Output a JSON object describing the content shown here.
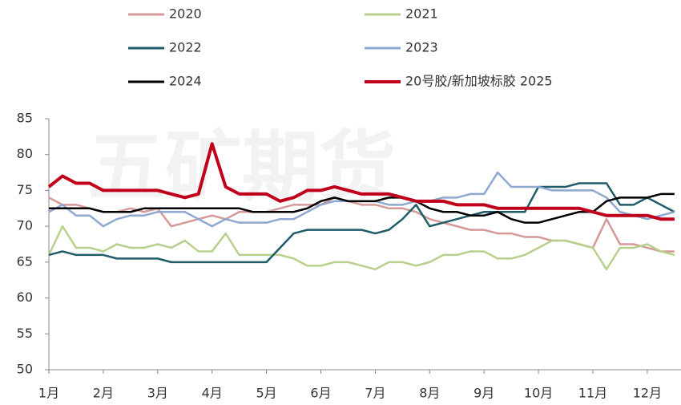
{
  "chart_data": {
    "type": "line",
    "watermark": "五矿期货",
    "x": [
      1,
      1.25,
      1.5,
      1.75,
      2,
      2.25,
      2.5,
      2.75,
      3,
      3.25,
      3.5,
      3.75,
      4,
      4.25,
      4.5,
      4.75,
      5,
      5.25,
      5.5,
      5.75,
      6,
      6.25,
      6.5,
      6.75,
      7,
      7.25,
      7.5,
      7.75,
      8,
      8.25,
      8.5,
      8.75,
      9,
      9.25,
      9.5,
      9.75,
      10,
      10.25,
      10.5,
      10.75,
      11,
      11.25,
      11.5,
      11.75,
      12,
      12.25,
      12.5
    ],
    "xlim": [
      1,
      12.62
    ],
    "xticks": [
      {
        "value": 1,
        "label": "1月"
      },
      {
        "value": 2,
        "label": "2月"
      },
      {
        "value": 3,
        "label": "3月"
      },
      {
        "value": 4,
        "label": "4月"
      },
      {
        "value": 5,
        "label": "5月"
      },
      {
        "value": 6,
        "label": "6月"
      },
      {
        "value": 7,
        "label": "7月"
      },
      {
        "value": 8,
        "label": "8月"
      },
      {
        "value": 9,
        "label": "9月"
      },
      {
        "value": 10,
        "label": "10月"
      },
      {
        "value": 11,
        "label": "11月"
      },
      {
        "value": 12,
        "label": "12月"
      }
    ],
    "ylim": [
      50,
      85
    ],
    "yticks": [
      50,
      55,
      60,
      65,
      70,
      75,
      80,
      85
    ],
    "series": [
      {
        "name": "2020",
        "color": "#d49a98",
        "values": [
          74,
          73,
          73,
          72.5,
          72,
          72,
          72.5,
          72,
          72.5,
          70,
          70.5,
          71,
          71.5,
          71,
          72,
          72,
          72,
          72.5,
          73,
          73,
          73,
          74,
          73.5,
          73,
          73,
          72.5,
          72.5,
          72,
          71,
          70.5,
          70,
          69.5,
          69.5,
          69,
          69,
          68.5,
          68.5,
          68,
          68,
          67.5,
          67,
          71,
          67.5,
          67.5,
          67,
          66.5,
          66.5
        ]
      },
      {
        "name": "2021",
        "color": "#b8d08c",
        "values": [
          66,
          70,
          67,
          67,
          66.5,
          67.5,
          67,
          67,
          67.5,
          67,
          68,
          66.5,
          66.5,
          69,
          66,
          66,
          66,
          66,
          65.5,
          64.5,
          64.5,
          65,
          65,
          64.5,
          64,
          65,
          65,
          64.5,
          65,
          66,
          66,
          66.5,
          66.5,
          65.5,
          65.5,
          66,
          67,
          68,
          68,
          67.5,
          67,
          64,
          67,
          67,
          67.5,
          66.5,
          66
        ]
      },
      {
        "name": "2022",
        "color": "#1f5c6a",
        "values": [
          66,
          66.5,
          66,
          66,
          66,
          65.5,
          65.5,
          65.5,
          65.5,
          65,
          65,
          65,
          65,
          65,
          65,
          65,
          65,
          67,
          69,
          69.5,
          69.5,
          69.5,
          69.5,
          69.5,
          69,
          69.5,
          71,
          73,
          70,
          70.5,
          71,
          71.5,
          72,
          72,
          72,
          72,
          75.5,
          75.5,
          75.5,
          76,
          76,
          76,
          73,
          73,
          74,
          73,
          72
        ]
      },
      {
        "name": "2023",
        "color": "#8ea8d0",
        "values": [
          72,
          73,
          71.5,
          71.5,
          70,
          71,
          71.5,
          71.5,
          72,
          72,
          72,
          71,
          70,
          71,
          70.5,
          70.5,
          70.5,
          71,
          71,
          72,
          73,
          73.5,
          73.5,
          73.5,
          73.5,
          73,
          73,
          73.5,
          73.5,
          74,
          74,
          74.5,
          74.5,
          77.5,
          75.5,
          75.5,
          75.5,
          75,
          75,
          75,
          75,
          74,
          72,
          71.5,
          71,
          71.5,
          72
        ]
      },
      {
        "name": "2024",
        "color": "#000000",
        "values": [
          72.5,
          72.5,
          72.5,
          72.5,
          72,
          72,
          72,
          72.5,
          72.5,
          72.5,
          72.5,
          72.5,
          72.5,
          72.5,
          72.5,
          72,
          72,
          72,
          72,
          72.5,
          73.5,
          74,
          73.5,
          73.5,
          73.5,
          74,
          74,
          73.5,
          72.5,
          72,
          72,
          71.5,
          71.5,
          72,
          71,
          70.5,
          70.5,
          71,
          71.5,
          72,
          72,
          73.5,
          74,
          74,
          74,
          74.5,
          74.5
        ]
      },
      {
        "name": "20号胶/新加坡标胶 2025",
        "color": "#c0001a",
        "width": 4,
        "values": [
          75.5,
          77,
          76,
          76,
          75,
          75,
          75,
          75,
          75,
          74.5,
          74,
          74.5,
          81.5,
          75.5,
          74.5,
          74.5,
          74.5,
          73.5,
          74,
          75,
          75,
          75.5,
          75,
          74.5,
          74.5,
          74.5,
          74,
          73.5,
          73.5,
          73.5,
          73,
          73,
          73,
          72.5,
          72.5,
          72.5,
          72.5,
          72.5,
          72.5,
          72.5,
          72,
          71.5,
          71.5,
          71.5,
          71.5,
          71,
          71
        ]
      }
    ]
  }
}
